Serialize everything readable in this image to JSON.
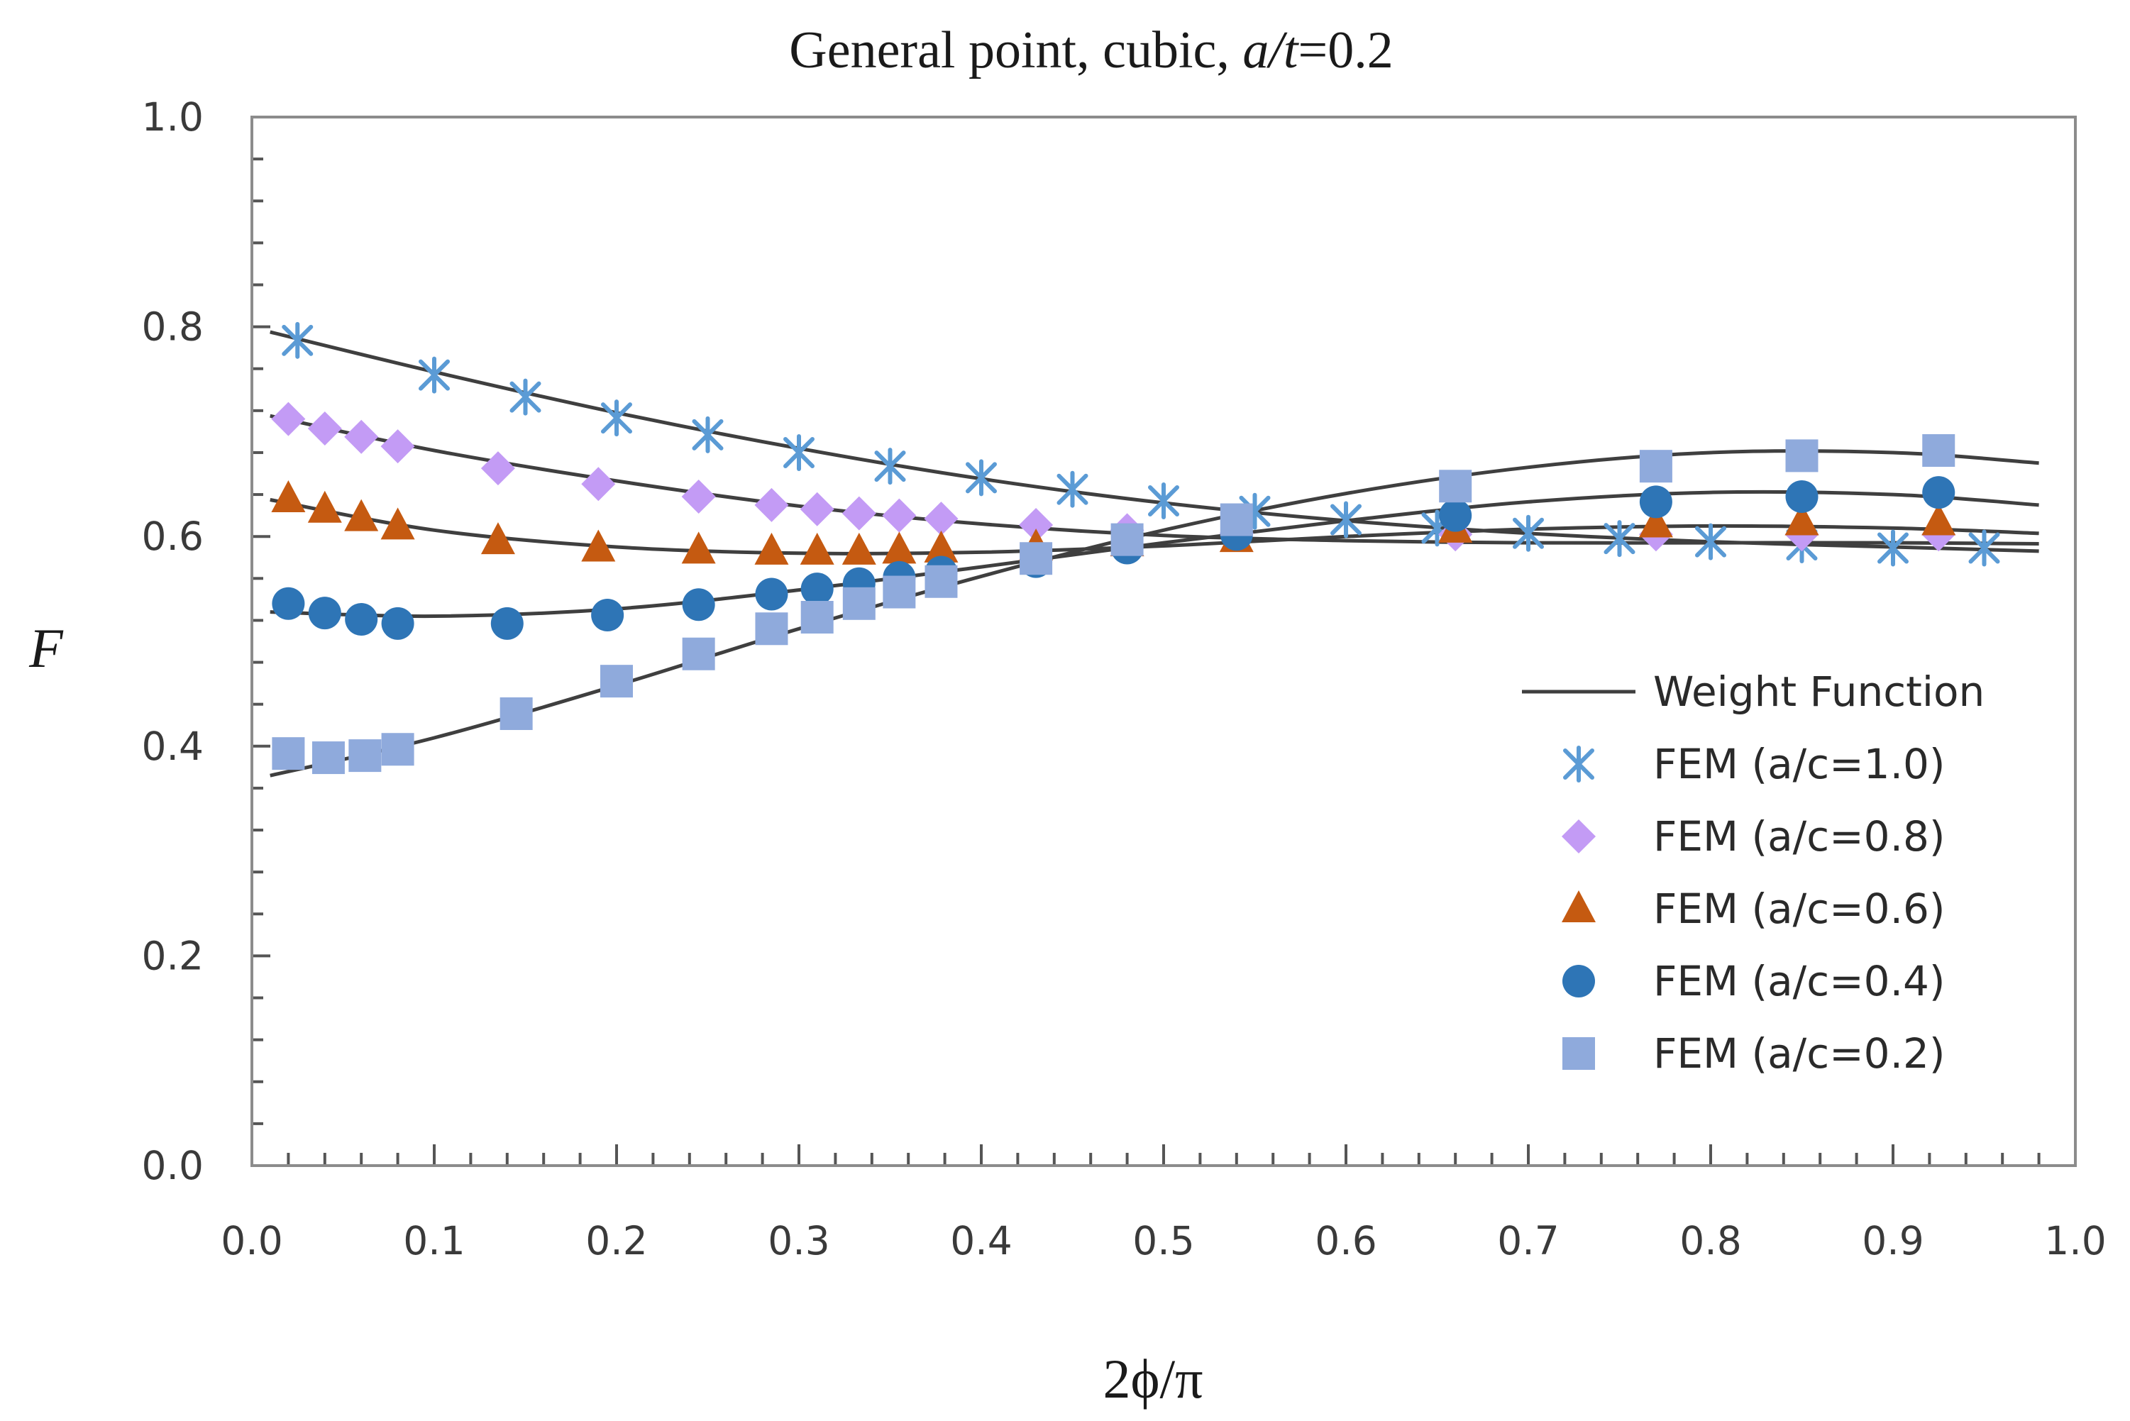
{
  "chart_data": {
    "type": "scatter",
    "title_parts": {
      "prefix": "General point, cubic, ",
      "italic": "a/t",
      "suffix": "=0.2"
    },
    "xlabel": "2ϕ/π",
    "ylabel": "F",
    "xlim": [
      0.0,
      1.0
    ],
    "ylim": [
      0.0,
      1.0
    ],
    "x_ticks": [
      "0.0",
      "0.1",
      "0.2",
      "0.3",
      "0.4",
      "0.5",
      "0.6",
      "0.7",
      "0.8",
      "0.9",
      "1.0"
    ],
    "y_ticks": [
      "0.0",
      "0.2",
      "0.4",
      "0.6",
      "0.8",
      "1.0"
    ],
    "legend_position": "right",
    "legend": [
      {
        "label": "Weight Function",
        "marker": "line",
        "color": "#3f3f3f"
      },
      {
        "label": "FEM (a/c=1.0)",
        "marker": "asterisk",
        "color": "#5b9bd5"
      },
      {
        "label": "FEM (a/c=0.8)",
        "marker": "diamond",
        "color": "#c39bf5"
      },
      {
        "label": "FEM (a/c=0.6)",
        "marker": "triangle",
        "color": "#c55a11"
      },
      {
        "label": "FEM (a/c=0.4)",
        "marker": "circle",
        "color": "#2e75b6"
      },
      {
        "label": "FEM (a/c=0.2)",
        "marker": "square",
        "color": "#8faadc"
      }
    ],
    "weight_function_curves": [
      {
        "name": "a/c=1.0",
        "x": [
          0.01,
          0.1,
          0.2,
          0.3,
          0.4,
          0.5,
          0.6,
          0.7,
          0.8,
          0.9,
          0.98
        ],
        "y": [
          0.795,
          0.757,
          0.718,
          0.684,
          0.655,
          0.632,
          0.615,
          0.603,
          0.595,
          0.59,
          0.586
        ]
      },
      {
        "name": "a/c=0.8",
        "x": [
          0.01,
          0.1,
          0.2,
          0.3,
          0.4,
          0.5,
          0.6,
          0.7,
          0.8,
          0.9,
          0.98
        ],
        "y": [
          0.715,
          0.682,
          0.653,
          0.629,
          0.612,
          0.601,
          0.596,
          0.594,
          0.594,
          0.594,
          0.593
        ]
      },
      {
        "name": "a/c=0.6",
        "x": [
          0.01,
          0.1,
          0.2,
          0.3,
          0.4,
          0.5,
          0.6,
          0.7,
          0.8,
          0.9,
          0.98
        ],
        "y": [
          0.635,
          0.606,
          0.59,
          0.584,
          0.585,
          0.591,
          0.6,
          0.607,
          0.61,
          0.608,
          0.603
        ]
      },
      {
        "name": "a/c=0.4",
        "x": [
          0.01,
          0.1,
          0.2,
          0.3,
          0.4,
          0.5,
          0.6,
          0.7,
          0.8,
          0.9,
          0.98
        ],
        "y": [
          0.528,
          0.524,
          0.531,
          0.549,
          0.571,
          0.594,
          0.615,
          0.633,
          0.642,
          0.64,
          0.63
        ]
      },
      {
        "name": "a/c=0.2",
        "x": [
          0.01,
          0.1,
          0.2,
          0.3,
          0.4,
          0.5,
          0.6,
          0.7,
          0.8,
          0.9,
          0.98
        ],
        "y": [
          0.372,
          0.408,
          0.458,
          0.512,
          0.562,
          0.606,
          0.641,
          0.666,
          0.68,
          0.68,
          0.67
        ]
      }
    ],
    "series": [
      {
        "name": "FEM (a/c=1.0)",
        "marker": "asterisk",
        "color": "#5b9bd5",
        "x": [
          0.025,
          0.1,
          0.15,
          0.2,
          0.25,
          0.3,
          0.35,
          0.4,
          0.45,
          0.5,
          0.55,
          0.6,
          0.65,
          0.7,
          0.75,
          0.8,
          0.85,
          0.9,
          0.95
        ],
        "y": [
          0.787,
          0.754,
          0.733,
          0.713,
          0.697,
          0.68,
          0.667,
          0.656,
          0.645,
          0.634,
          0.624,
          0.616,
          0.608,
          0.603,
          0.598,
          0.595,
          0.592,
          0.589,
          0.589
        ]
      },
      {
        "name": "FEM (a/c=0.8)",
        "marker": "diamond",
        "color": "#c39bf5",
        "x": [
          0.02,
          0.04,
          0.06,
          0.08,
          0.135,
          0.19,
          0.245,
          0.285,
          0.31,
          0.333,
          0.355,
          0.378,
          0.43,
          0.48,
          0.54,
          0.66,
          0.77,
          0.85,
          0.925
        ],
        "y": [
          0.712,
          0.703,
          0.695,
          0.686,
          0.665,
          0.65,
          0.638,
          0.63,
          0.626,
          0.622,
          0.62,
          0.617,
          0.611,
          0.606,
          0.603,
          0.602,
          0.602,
          0.602,
          0.602
        ]
      },
      {
        "name": "FEM (a/c=0.6)",
        "marker": "triangle",
        "color": "#c55a11",
        "x": [
          0.02,
          0.04,
          0.06,
          0.08,
          0.135,
          0.19,
          0.245,
          0.285,
          0.31,
          0.333,
          0.355,
          0.378,
          0.43,
          0.48,
          0.54,
          0.66,
          0.77,
          0.85,
          0.925
        ],
        "y": [
          0.636,
          0.626,
          0.618,
          0.61,
          0.596,
          0.589,
          0.587,
          0.586,
          0.586,
          0.586,
          0.587,
          0.588,
          0.59,
          0.594,
          0.598,
          0.607,
          0.612,
          0.614,
          0.614
        ]
      },
      {
        "name": "FEM (a/c=0.4)",
        "marker": "circle",
        "color": "#2e75b6",
        "x": [
          0.02,
          0.04,
          0.06,
          0.08,
          0.14,
          0.195,
          0.245,
          0.285,
          0.31,
          0.333,
          0.355,
          0.378,
          0.43,
          0.48,
          0.54,
          0.66,
          0.77,
          0.85,
          0.925
        ],
        "y": [
          0.536,
          0.527,
          0.521,
          0.517,
          0.517,
          0.525,
          0.535,
          0.545,
          0.55,
          0.555,
          0.561,
          0.566,
          0.576,
          0.589,
          0.602,
          0.62,
          0.633,
          0.638,
          0.642
        ]
      },
      {
        "name": "FEM (a/c=0.2)",
        "marker": "square",
        "color": "#8faadc",
        "x": [
          0.02,
          0.042,
          0.062,
          0.08,
          0.145,
          0.2,
          0.245,
          0.285,
          0.31,
          0.333,
          0.355,
          0.378,
          0.43,
          0.48,
          0.54,
          0.66,
          0.77,
          0.85,
          0.925
        ],
        "y": [
          0.393,
          0.389,
          0.391,
          0.397,
          0.431,
          0.462,
          0.488,
          0.512,
          0.523,
          0.536,
          0.547,
          0.557,
          0.579,
          0.597,
          0.616,
          0.648,
          0.667,
          0.677,
          0.682
        ]
      }
    ]
  }
}
